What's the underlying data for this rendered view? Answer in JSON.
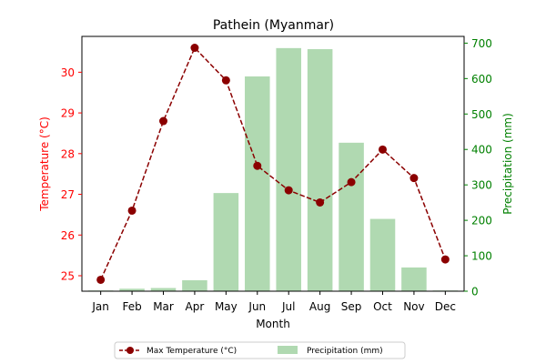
{
  "chart_data": {
    "type": "bar+line",
    "title": "Pathein (Myanmar)",
    "xlabel": "Month",
    "ylabel_left": "Temperature (°C)",
    "ylabel_right": "Precipitation (mm)",
    "categories": [
      "Jan",
      "Feb",
      "Mar",
      "Apr",
      "May",
      "Jun",
      "Jul",
      "Aug",
      "Sep",
      "Oct",
      "Nov",
      "Dec"
    ],
    "series": [
      {
        "name": "Max Temperature (°C)",
        "kind": "line",
        "axis": "left",
        "color": "#8b0000",
        "values": [
          24.9,
          26.6,
          28.8,
          30.6,
          29.8,
          27.7,
          27.1,
          26.8,
          27.3,
          28.1,
          27.4,
          25.4
        ]
      },
      {
        "name": "Precipitation (mm)",
        "kind": "bar",
        "axis": "right",
        "color": "#b0d9b1",
        "values": [
          2,
          7,
          9,
          31,
          277,
          606,
          686,
          683,
          419,
          204,
          67,
          2
        ]
      }
    ],
    "ylim_left": [
      24.62,
      30.88
    ],
    "ylim_right": [
      0,
      719
    ],
    "yticks_left": [
      "25",
      "26",
      "27",
      "28",
      "29",
      "30"
    ],
    "yticks_right": [
      "0",
      "100",
      "200",
      "300",
      "400",
      "500",
      "600",
      "700"
    ],
    "left_axis_color": "#ff0000",
    "right_axis_color": "#008000",
    "grid": false,
    "legend_position": "bottom-center"
  }
}
